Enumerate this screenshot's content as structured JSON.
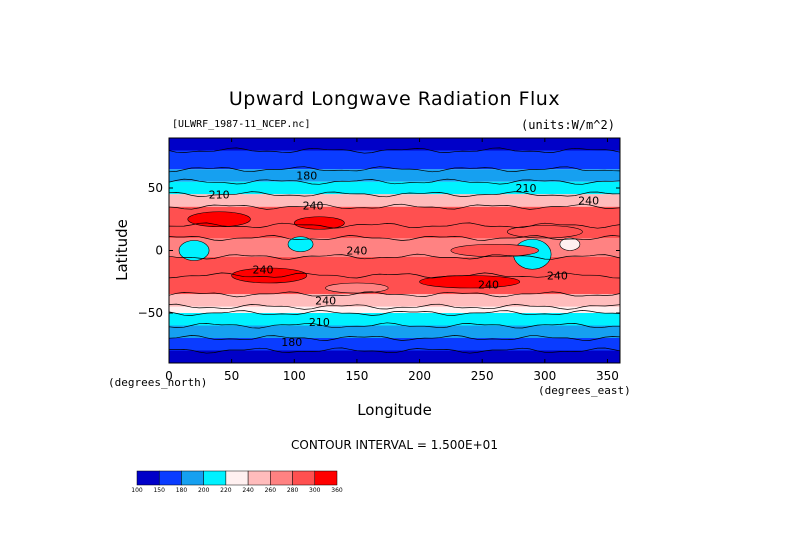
{
  "chart_data": {
    "type": "heatmap",
    "title": "Upward Longwave Radiation Flux",
    "dataset": "[ULWRF_1987-11_NCEP.nc]",
    "units": "(units:W/m^2)",
    "xlabel": "Longitude",
    "ylabel": "Latitude",
    "x_units_left": "(degrees_north)",
    "x_units_right": "(degrees_east)",
    "contour_note": "CONTOUR INTERVAL = 1.500E+01",
    "xlim": [
      0,
      360
    ],
    "ylim": [
      -90,
      90
    ],
    "x_ticks": [
      "0",
      "50",
      "100",
      "150",
      "200",
      "250",
      "300",
      "350"
    ],
    "x_tick_values": [
      0,
      50,
      100,
      150,
      200,
      250,
      300,
      350
    ],
    "y_ticks": [
      "50",
      "0",
      "−50"
    ],
    "y_tick_values": [
      50,
      0,
      -50
    ],
    "bands": [
      {
        "lat_from": 90,
        "lat_to": 80,
        "bin": 0
      },
      {
        "lat_from": 80,
        "lat_to": 65,
        "bin": 1
      },
      {
        "lat_from": 65,
        "lat_to": 55,
        "bin": 2
      },
      {
        "lat_from": 55,
        "lat_to": 45,
        "bin": 3
      },
      {
        "lat_from": 45,
        "lat_to": 35,
        "bin": 5
      },
      {
        "lat_from": 35,
        "lat_to": 20,
        "bin": 7
      },
      {
        "lat_from": 20,
        "lat_to": 10,
        "bin": 7
      },
      {
        "lat_from": 10,
        "lat_to": -5,
        "bin": 6
      },
      {
        "lat_from": -5,
        "lat_to": -20,
        "bin": 7
      },
      {
        "lat_from": -20,
        "lat_to": -35,
        "bin": 7
      },
      {
        "lat_from": -35,
        "lat_to": -45,
        "bin": 5
      },
      {
        "lat_from": -45,
        "lat_to": -50,
        "bin": 4
      },
      {
        "lat_from": -50,
        "lat_to": -60,
        "bin": 3
      },
      {
        "lat_from": -60,
        "lat_to": -70,
        "bin": 2
      },
      {
        "lat_from": -70,
        "lat_to": -80,
        "bin": 1
      },
      {
        "lat_from": -80,
        "lat_to": -90,
        "bin": 0
      }
    ],
    "patches": [
      {
        "lon": 40,
        "lat": 25,
        "rx": 25,
        "ry": 6,
        "bin": 8
      },
      {
        "lon": 120,
        "lat": 22,
        "rx": 20,
        "ry": 5,
        "bin": 8
      },
      {
        "lon": 300,
        "lat": 15,
        "rx": 30,
        "ry": 5,
        "bin": 7
      },
      {
        "lon": 20,
        "lat": 0,
        "rx": 12,
        "ry": 8,
        "bin": 3
      },
      {
        "lon": 105,
        "lat": 5,
        "rx": 10,
        "ry": 6,
        "bin": 3
      },
      {
        "lon": 290,
        "lat": -3,
        "rx": 15,
        "ry": 12,
        "bin": 3
      },
      {
        "lon": 320,
        "lat": 5,
        "rx": 8,
        "ry": 5,
        "bin": 4
      },
      {
        "lon": 260,
        "lat": 0,
        "rx": 35,
        "ry": 5,
        "bin": 7
      },
      {
        "lon": 80,
        "lat": -20,
        "rx": 30,
        "ry": 6,
        "bin": 8
      },
      {
        "lon": 240,
        "lat": -25,
        "rx": 40,
        "ry": 5,
        "bin": 8
      },
      {
        "lon": 150,
        "lat": -30,
        "rx": 25,
        "ry": 4,
        "bin": 6
      }
    ],
    "contour_labels": [
      {
        "text": "180",
        "lon": 110,
        "lat": 60
      },
      {
        "text": "210",
        "lon": 40,
        "lat": 45
      },
      {
        "text": "210",
        "lon": 285,
        "lat": 50
      },
      {
        "text": "240",
        "lon": 115,
        "lat": 36
      },
      {
        "text": "240",
        "lon": 335,
        "lat": 40
      },
      {
        "text": "240",
        "lon": 150,
        "lat": 0
      },
      {
        "text": "240",
        "lon": 75,
        "lat": -15
      },
      {
        "text": "240",
        "lon": 255,
        "lat": -27
      },
      {
        "text": "240",
        "lon": 310,
        "lat": -20
      },
      {
        "text": "240",
        "lon": 125,
        "lat": -40
      },
      {
        "text": "210",
        "lon": 120,
        "lat": -57
      },
      {
        "text": "180",
        "lon": 98,
        "lat": -73
      }
    ],
    "legend": {
      "boundaries": [
        "100",
        "150",
        "180",
        "200",
        "220",
        "240",
        "260",
        "280",
        "300",
        "360"
      ],
      "colors": [
        "#0000c8",
        "#0a3cff",
        "#16a0f0",
        "#00f2ff",
        "#fff0f0",
        "#ffbcbc",
        "#ff8282",
        "#ff5050",
        "#ff0000"
      ]
    }
  }
}
